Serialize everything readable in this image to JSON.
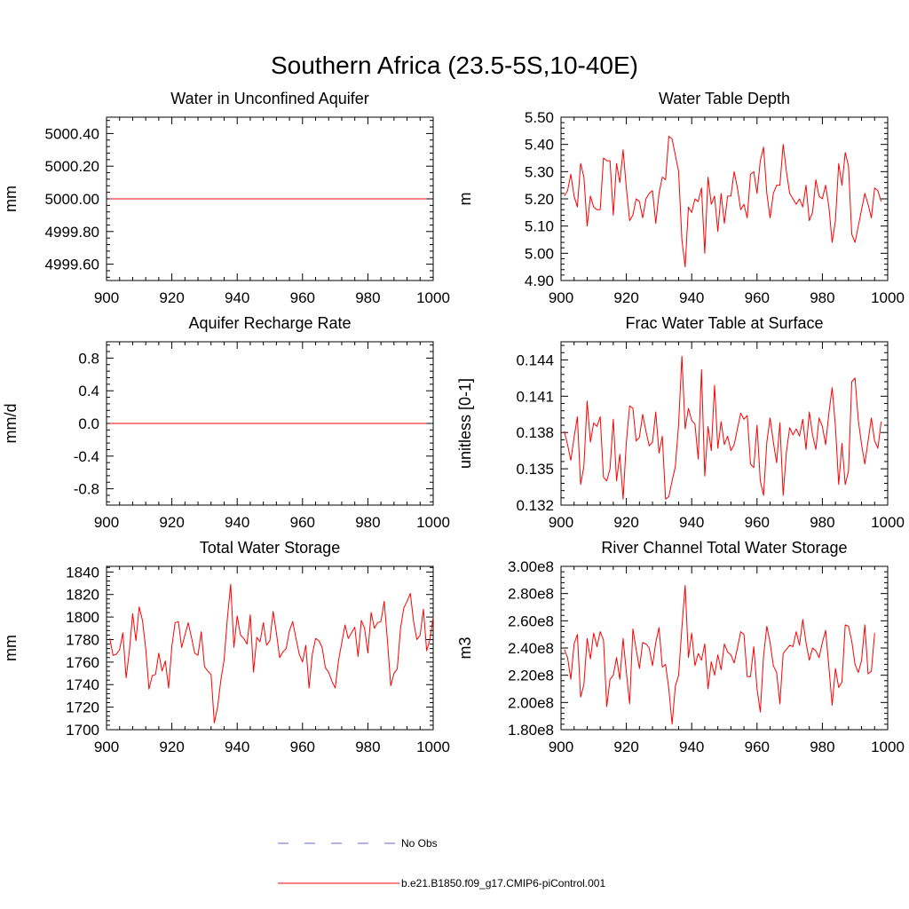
{
  "figure": {
    "title": "Southern Africa (23.5-5S,10-40E)"
  },
  "colors": {
    "model_line": "#ff0000",
    "obs_line": "#6666cc",
    "axis": "#000000"
  },
  "legend": {
    "entries": [
      {
        "label": "No Obs",
        "style": "dashed",
        "color": "#6666cc"
      },
      {
        "label": "b.e21.B1850.f09_g17.CMIP6-piControl.001",
        "style": "solid",
        "color": "#ff0000"
      }
    ]
  },
  "chart_data": [
    {
      "type": "line",
      "title": "Water in Unconfined Aquifer",
      "ylabel": "mm",
      "xlabel": "",
      "xlim": [
        900,
        1000
      ],
      "ylim": [
        4999.5,
        5000.5
      ],
      "xticks": [
        "900",
        "920",
        "940",
        "960",
        "980",
        "1000"
      ],
      "yticks": [
        "4999.60",
        "4999.80",
        "5000.00",
        "5000.20",
        "5000.40"
      ],
      "x_start": 901,
      "series": [
        {
          "name": "b.e21.B1850.f09_g17.CMIP6-piControl.001",
          "values": [
            5000.0,
            5000.0,
            5000.0,
            5000.0,
            5000.0,
            5000.0,
            5000.0,
            5000.0,
            5000.0,
            5000.0,
            5000.0,
            5000.0,
            5000.0,
            5000.0,
            5000.0,
            5000.0,
            5000.0,
            5000.0,
            5000.0,
            5000.0,
            5000.0,
            5000.0,
            5000.0,
            5000.0,
            5000.0,
            5000.0,
            5000.0,
            5000.0,
            5000.0,
            5000.0,
            5000.0,
            5000.0,
            5000.0,
            5000.0,
            5000.0,
            5000.0,
            5000.0,
            5000.0,
            5000.0,
            5000.0,
            5000.0,
            5000.0,
            5000.0,
            5000.0,
            5000.0,
            5000.0,
            5000.0,
            5000.0,
            5000.0,
            5000.0,
            5000.0,
            5000.0,
            5000.0,
            5000.0,
            5000.0,
            5000.0,
            5000.0,
            5000.0,
            5000.0,
            5000.0,
            5000.0,
            5000.0,
            5000.0,
            5000.0,
            5000.0,
            5000.0,
            5000.0,
            5000.0,
            5000.0,
            5000.0,
            5000.0,
            5000.0,
            5000.0,
            5000.0,
            5000.0,
            5000.0,
            5000.0,
            5000.0,
            5000.0,
            5000.0,
            5000.0,
            5000.0,
            5000.0,
            5000.0,
            5000.0,
            5000.0,
            5000.0,
            5000.0,
            5000.0,
            5000.0,
            5000.0,
            5000.0,
            5000.0,
            5000.0,
            5000.0,
            5000.0,
            5000.0,
            5000.0
          ]
        }
      ]
    },
    {
      "type": "line",
      "title": "Water Table Depth",
      "ylabel": "m",
      "xlabel": "",
      "xlim": [
        900,
        1000
      ],
      "ylim": [
        4.9,
        5.5
      ],
      "xticks": [
        "900",
        "920",
        "940",
        "960",
        "980",
        "1000"
      ],
      "yticks": [
        "4.90",
        "5.00",
        "5.10",
        "5.20",
        "5.30",
        "5.40",
        "5.50"
      ],
      "x_start": 901,
      "series": [
        {
          "name": "b.e21.B1850.f09_g17.CMIP6-piControl.001",
          "values": [
            5.21,
            5.23,
            5.29,
            5.21,
            5.17,
            5.33,
            5.28,
            5.1,
            5.21,
            5.17,
            5.16,
            5.16,
            5.35,
            5.34,
            5.34,
            5.14,
            5.33,
            5.26,
            5.38,
            5.24,
            5.12,
            5.14,
            5.2,
            5.19,
            5.13,
            5.2,
            5.22,
            5.23,
            5.11,
            5.22,
            5.28,
            5.27,
            5.43,
            5.42,
            5.36,
            5.3,
            5.05,
            4.95,
            5.17,
            5.15,
            5.2,
            5.19,
            5.24,
            5.0,
            5.28,
            5.18,
            5.21,
            5.08,
            5.22,
            5.11,
            5.21,
            5.21,
            5.3,
            5.24,
            5.16,
            5.18,
            5.13,
            5.29,
            5.3,
            5.22,
            5.34,
            5.39,
            5.22,
            5.13,
            5.22,
            5.25,
            5.25,
            5.4,
            5.3,
            5.22,
            5.2,
            5.18,
            5.2,
            5.17,
            5.25,
            5.12,
            5.15,
            5.27,
            5.21,
            5.2,
            5.25,
            5.17,
            5.04,
            5.12,
            5.33,
            5.25,
            5.37,
            5.32,
            5.07,
            5.04,
            5.1,
            5.16,
            5.22,
            5.18,
            5.13,
            5.24,
            5.23,
            5.19
          ]
        }
      ]
    },
    {
      "type": "line",
      "title": "Aquifer Recharge Rate",
      "ylabel": "mm/d",
      "xlabel": "",
      "xlim": [
        900,
        1000
      ],
      "ylim": [
        -1.0,
        1.0
      ],
      "xticks": [
        "900",
        "920",
        "940",
        "960",
        "980",
        "1000"
      ],
      "yticks": [
        "-0.8",
        "-0.4",
        "0.0",
        "0.4",
        "0.8"
      ],
      "x_start": 901,
      "series": [
        {
          "name": "b.e21.B1850.f09_g17.CMIP6-piControl.001",
          "values": [
            0.0,
            0.0,
            0.0,
            0.0,
            0.0,
            0.0,
            0.0,
            0.0,
            0.0,
            0.0,
            0.0,
            0.0,
            0.0,
            0.0,
            0.0,
            0.0,
            0.0,
            0.0,
            0.0,
            0.0,
            0.0,
            0.0,
            0.0,
            0.0,
            0.0,
            0.0,
            0.0,
            0.0,
            0.0,
            0.0,
            0.0,
            0.0,
            0.0,
            0.0,
            0.0,
            0.0,
            0.0,
            0.0,
            0.0,
            0.0,
            0.0,
            0.0,
            0.0,
            0.0,
            0.0,
            0.0,
            0.0,
            0.0,
            0.0,
            0.0,
            0.0,
            0.0,
            0.0,
            0.0,
            0.0,
            0.0,
            0.0,
            0.0,
            0.0,
            0.0,
            0.0,
            0.0,
            0.0,
            0.0,
            0.0,
            0.0,
            0.0,
            0.0,
            0.0,
            0.0,
            0.0,
            0.0,
            0.0,
            0.0,
            0.0,
            0.0,
            0.0,
            0.0,
            0.0,
            0.0,
            0.0,
            0.0,
            0.0,
            0.0,
            0.0,
            0.0,
            0.0,
            0.0,
            0.0,
            0.0,
            0.0,
            0.0,
            0.0,
            0.0,
            0.0,
            0.0,
            0.0,
            0.0
          ]
        }
      ]
    },
    {
      "type": "line",
      "title": "Frac Water Table at Surface",
      "ylabel": "unitless [0-1]",
      "xlabel": "",
      "xlim": [
        900,
        1000
      ],
      "ylim": [
        0.132,
        0.1455
      ],
      "xticks": [
        "900",
        "920",
        "940",
        "960",
        "980",
        "1000"
      ],
      "yticks": [
        "0.132",
        "0.135",
        "0.138",
        "0.141",
        "0.144"
      ],
      "x_start": 901,
      "series": [
        {
          "name": "b.e21.B1850.f09_g17.CMIP6-piControl.001",
          "values": [
            0.1381,
            0.137,
            0.1357,
            0.1376,
            0.1393,
            0.1337,
            0.1352,
            0.1406,
            0.1372,
            0.1388,
            0.1385,
            0.1393,
            0.1343,
            0.134,
            0.135,
            0.1391,
            0.134,
            0.1362,
            0.1325,
            0.1372,
            0.1402,
            0.14,
            0.1373,
            0.1376,
            0.1395,
            0.1381,
            0.1369,
            0.1372,
            0.1397,
            0.1363,
            0.1377,
            0.1325,
            0.1327,
            0.134,
            0.1352,
            0.1387,
            0.1443,
            0.1383,
            0.14,
            0.139,
            0.1387,
            0.1358,
            0.1432,
            0.1344,
            0.1385,
            0.1365,
            0.1419,
            0.1367,
            0.1389,
            0.137,
            0.1377,
            0.1365,
            0.137,
            0.1383,
            0.1396,
            0.1391,
            0.1394,
            0.1354,
            0.1351,
            0.1386,
            0.134,
            0.1328,
            0.1372,
            0.1392,
            0.1372,
            0.1355,
            0.1388,
            0.1328,
            0.1364,
            0.1384,
            0.1378,
            0.1383,
            0.1377,
            0.1391,
            0.1366,
            0.1397,
            0.1378,
            0.1366,
            0.1392,
            0.1385,
            0.137,
            0.1396,
            0.1417,
            0.1385,
            0.1337,
            0.1371,
            0.1337,
            0.1348,
            0.1422,
            0.1425,
            0.139,
            0.137,
            0.1354,
            0.1373,
            0.1392,
            0.1373,
            0.1367,
            0.1389
          ]
        }
      ]
    },
    {
      "type": "line",
      "title": "Total Water Storage",
      "ylabel": "mm",
      "xlabel": "",
      "xlim": [
        900,
        1000
      ],
      "ylim": [
        1700,
        1845
      ],
      "xticks": [
        "900",
        "920",
        "940",
        "960",
        "980",
        "1000"
      ],
      "yticks": [
        "1700",
        "1720",
        "1740",
        "1760",
        "1780",
        "1800",
        "1820",
        "1840"
      ],
      "x_start": 901,
      "series": [
        {
          "name": "b.e21.B1850.f09_g17.CMIP6-piControl.001",
          "values": [
            1781,
            1766,
            1767,
            1771,
            1786,
            1746,
            1770,
            1803,
            1779,
            1809,
            1797,
            1772,
            1736,
            1748,
            1749,
            1768,
            1752,
            1761,
            1737,
            1774,
            1795,
            1796,
            1773,
            1784,
            1795,
            1782,
            1768,
            1766,
            1787,
            1756,
            1752,
            1749,
            1706,
            1720,
            1744,
            1762,
            1799,
            1829,
            1773,
            1801,
            1784,
            1781,
            1776,
            1802,
            1751,
            1782,
            1778,
            1795,
            1775,
            1779,
            1805,
            1786,
            1764,
            1769,
            1772,
            1788,
            1796,
            1781,
            1767,
            1760,
            1775,
            1737,
            1767,
            1781,
            1779,
            1773,
            1755,
            1751,
            1743,
            1737,
            1761,
            1777,
            1793,
            1781,
            1786,
            1791,
            1765,
            1797,
            1790,
            1768,
            1804,
            1790,
            1795,
            1796,
            1814,
            1779,
            1739,
            1750,
            1754,
            1790,
            1808,
            1814,
            1821,
            1796,
            1780,
            1784,
            1807,
            1770,
            1780,
            1800
          ]
        }
      ]
    },
    {
      "type": "line",
      "title": "River Channel Total Water Storage",
      "ylabel": "m3",
      "xlabel": "",
      "xlim": [
        900,
        1000
      ],
      "ylim": [
        180000000.0,
        300000000.0
      ],
      "xticks": [
        "900",
        "920",
        "940",
        "960",
        "980",
        "1000"
      ],
      "yticks": [
        "1.80e8",
        "2.00e8",
        "2.20e8",
        "2.40e8",
        "2.60e8",
        "2.80e8",
        "3.00e8"
      ],
      "x_start": 901,
      "series": [
        {
          "name": "b.e21.B1850.f09_g17.CMIP6-piControl.001",
          "values": [
            239000000.0,
            233000000.0,
            217000000.0,
            243000000.0,
            250000000.0,
            204000000.0,
            213000000.0,
            247000000.0,
            232000000.0,
            251000000.0,
            241000000.0,
            252000000.0,
            246000000.0,
            197000000.0,
            217000000.0,
            220000000.0,
            233000000.0,
            217000000.0,
            247000000.0,
            222000000.0,
            199000000.0,
            254000000.0,
            239000000.0,
            225000000.0,
            244000000.0,
            243000000.0,
            240000000.0,
            227000000.0,
            244000000.0,
            255000000.0,
            226000000.0,
            228000000.0,
            210000000.0,
            184000000.0,
            212000000.0,
            220000000.0,
            255000000.0,
            286000000.0,
            233000000.0,
            251000000.0,
            227000000.0,
            236000000.0,
            231000000.0,
            243000000.0,
            210000000.0,
            230000000.0,
            220000000.0,
            235000000.0,
            224000000.0,
            243000000.0,
            237000000.0,
            235000000.0,
            229000000.0,
            240000000.0,
            252000000.0,
            250000000.0,
            219000000.0,
            219000000.0,
            241000000.0,
            210000000.0,
            193000000.0,
            234000000.0,
            256000000.0,
            244000000.0,
            227000000.0,
            222000000.0,
            199000000.0,
            236000000.0,
            239000000.0,
            242000000.0,
            241000000.0,
            252000000.0,
            242000000.0,
            261000000.0,
            244000000.0,
            231000000.0,
            240000000.0,
            238000000.0,
            233000000.0,
            244000000.0,
            253000000.0,
            226000000.0,
            198000000.0,
            225000000.0,
            211000000.0,
            215000000.0,
            257000000.0,
            256000000.0,
            245000000.0,
            228000000.0,
            222000000.0,
            231000000.0,
            257000000.0,
            221000000.0,
            223000000.0,
            251000000.0
          ]
        }
      ]
    }
  ]
}
